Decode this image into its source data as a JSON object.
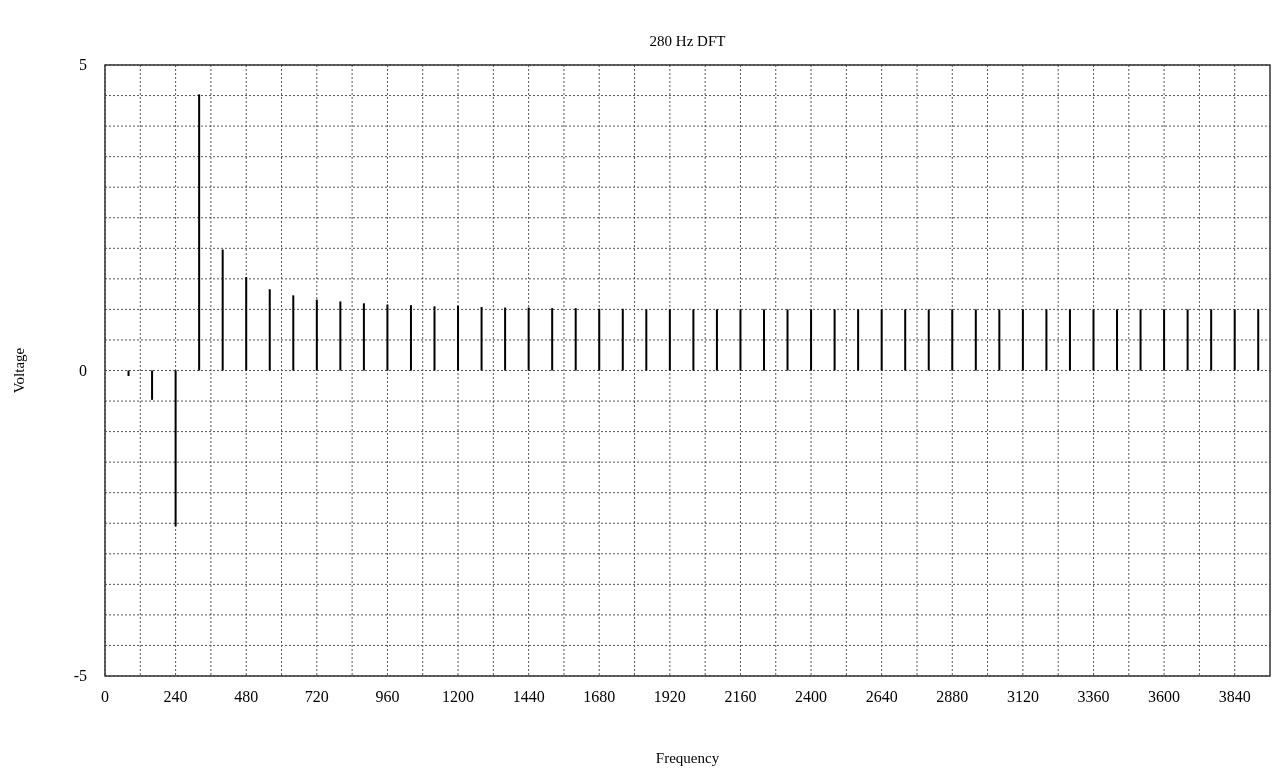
{
  "chart_data": {
    "type": "bar",
    "title": "280 Hz DFT",
    "xlabel": "Frequency",
    "ylabel": "Voltage",
    "x": [
      80,
      160,
      240,
      320,
      400,
      480,
      560,
      640,
      720,
      800,
      880,
      960,
      1040,
      1120,
      1200,
      1280,
      1360,
      1440,
      1520,
      1600,
      1680,
      1760,
      1840,
      1920,
      2000,
      2080,
      2160,
      2240,
      2320,
      2400,
      2480,
      2560,
      2640,
      2720,
      2800,
      2880,
      2960,
      3040,
      3120,
      3200,
      3280,
      3360,
      3440,
      3520,
      3600,
      3680,
      3760,
      3840,
      3920
    ],
    "series": [
      {
        "color": "#000000",
        "values": [
          -0.09,
          -0.48,
          -2.55,
          4.52,
          1.98,
          1.53,
          1.33,
          1.23,
          1.16,
          1.13,
          1.1,
          1.08,
          1.07,
          1.05,
          1.06,
          1.04,
          1.03,
          1.03,
          1.02,
          1.02,
          1.01,
          1.01,
          1,
          1,
          1,
          1,
          1,
          1,
          1,
          1,
          1,
          1,
          1,
          1,
          1,
          1,
          1,
          1,
          1,
          1,
          1,
          1,
          1,
          1,
          1,
          1,
          1,
          1,
          1
        ]
      }
    ],
    "xlim": [
      0,
      3960
    ],
    "xticks": [
      0,
      {
        "value": 120,
        "label": null
      },
      240,
      {
        "value": 360,
        "label": null
      },
      480,
      {
        "value": 600,
        "label": null
      },
      720,
      {
        "value": 840,
        "label": null
      },
      960,
      {
        "value": 1080,
        "label": null
      },
      1200,
      {
        "value": 1320,
        "label": null
      },
      1440,
      {
        "value": 1560,
        "label": null
      },
      1680,
      {
        "value": 1800,
        "label": null
      },
      1920,
      {
        "value": 2040,
        "label": null
      },
      2160,
      {
        "value": 2280,
        "label": null
      },
      2400,
      {
        "value": 2520,
        "label": null
      },
      2640,
      {
        "value": 2760,
        "label": null
      },
      2880,
      {
        "value": 3000,
        "label": null
      },
      3120,
      {
        "value": 3240,
        "label": null
      },
      3360,
      {
        "value": 3480,
        "label": null
      },
      3600,
      {
        "value": 3720,
        "label": null
      },
      3840
    ],
    "ylim": [
      -5,
      5
    ],
    "yticks": [
      -5,
      {
        "value": -4.5,
        "label": null
      },
      {
        "value": -4,
        "label": null
      },
      {
        "value": -3.5,
        "label": null
      },
      {
        "value": -3,
        "label": null
      },
      {
        "value": -2.5,
        "label": null
      },
      {
        "value": -2,
        "label": null
      },
      {
        "value": -1.5,
        "label": null
      },
      {
        "value": -1,
        "label": null
      },
      {
        "value": -0.5,
        "label": null
      },
      0,
      {
        "value": 0.5,
        "label": null
      },
      {
        "value": 1,
        "label": null
      },
      {
        "value": 1.5,
        "label": null
      },
      {
        "value": 2,
        "label": null
      },
      {
        "value": 2.5,
        "label": null
      },
      {
        "value": 3,
        "label": null
      },
      {
        "value": 3.5,
        "label": null
      },
      {
        "value": 4,
        "label": null
      },
      {
        "value": 4.5,
        "label": null
      },
      5
    ],
    "grid": true
  }
}
